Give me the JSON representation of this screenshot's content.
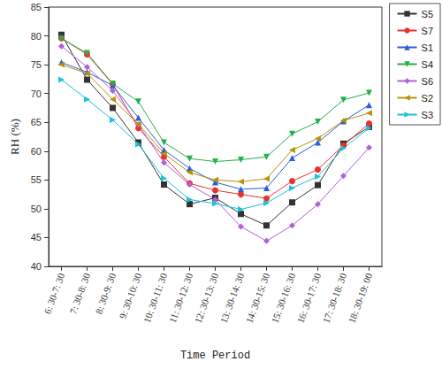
{
  "chart_data": {
    "type": "line",
    "x_label": "Time Period",
    "y_label": "RH (%)",
    "categories": [
      "6: 30-7: 30",
      "7: 30-8: 30",
      "8: 30-9: 30",
      "9: 30-10: 30",
      "10: 30-11: 30",
      "11: 30-12: 30",
      "12: 30-13: 30",
      "13: 30-14: 30",
      "14: 30-15: 30",
      "15: 30-16: 30",
      "16: 30-17: 30",
      "17: 30-18: 30",
      "18: 30-19: 00"
    ],
    "series": [
      {
        "name": "S5",
        "color": "#333333",
        "marker": "square",
        "values": [
          80.2,
          72.4,
          67.5,
          61.5,
          54.2,
          50.8,
          51.9,
          49.1,
          47.1,
          51.1,
          54.1,
          61.3,
          64.2
        ]
      },
      {
        "name": "S7",
        "color": "#e8322d",
        "marker": "circle",
        "values": [
          79.6,
          76.8,
          71.6,
          64.0,
          59.0,
          54.4,
          53.2,
          52.5,
          51.8,
          54.8,
          56.8,
          61.0,
          64.8
        ]
      },
      {
        "name": "S1",
        "color": "#2a5fd6",
        "marker": "triangle-up",
        "values": [
          75.4,
          73.7,
          71.4,
          65.8,
          60.2,
          57.0,
          54.6,
          53.4,
          53.6,
          58.8,
          61.5,
          65.2,
          68.0
        ]
      },
      {
        "name": "S4",
        "color": "#22b04a",
        "marker": "triangle-down",
        "values": [
          79.5,
          77.0,
          71.7,
          68.6,
          61.5,
          58.7,
          58.2,
          58.5,
          59.0,
          63.0,
          65.1,
          68.9,
          70.1
        ]
      },
      {
        "name": "S6",
        "color": "#b060d8",
        "marker": "diamond",
        "values": [
          78.2,
          74.6,
          70.5,
          64.6,
          58.0,
          54.2,
          51.6,
          46.9,
          44.4,
          47.1,
          50.8,
          55.7,
          60.6
        ]
      },
      {
        "name": "S2",
        "color": "#b8920a",
        "marker": "triangle-left",
        "values": [
          75.0,
          73.5,
          69.0,
          64.7,
          59.6,
          56.3,
          55.0,
          54.7,
          55.2,
          60.2,
          62.2,
          65.3,
          66.6
        ]
      },
      {
        "name": "S3",
        "color": "#1cc0d8",
        "marker": "triangle-right",
        "values": [
          72.4,
          69.0,
          65.4,
          61.2,
          55.3,
          51.6,
          50.9,
          49.9,
          51.0,
          53.6,
          55.6,
          60.5,
          64.0
        ]
      }
    ],
    "ylim": [
      40,
      85
    ],
    "yticks": [
      40,
      45,
      50,
      55,
      60,
      65,
      70,
      75,
      80,
      85
    ],
    "grid": false,
    "legend": "upper right"
  }
}
